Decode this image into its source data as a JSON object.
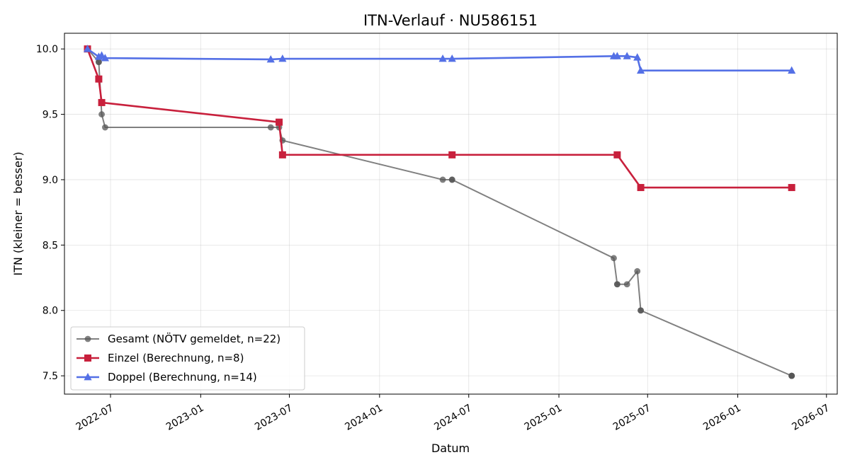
{
  "chart_data": {
    "type": "line",
    "title": "ITN-Verlauf · NU586151",
    "xlabel": "Datum",
    "ylabel": "ITN  (kleiner = besser)",
    "x_type": "date",
    "xlim": [
      "2022-03-29",
      "2026-07-23"
    ],
    "ylim": [
      7.36,
      10.12
    ],
    "x_ticks": [
      "2022-07-01",
      "2023-01-01",
      "2023-07-01",
      "2024-01-01",
      "2024-07-01",
      "2025-01-01",
      "2025-07-01",
      "2026-01-01",
      "2026-07-01"
    ],
    "x_tick_labels": [
      "2022-07",
      "2023-01",
      "2023-07",
      "2024-01",
      "2024-07",
      "2025-01",
      "2025-07",
      "2026-01",
      "2026-07"
    ],
    "y_ticks": [
      7.5,
      8.0,
      8.5,
      9.0,
      9.5,
      10.0
    ],
    "y_tick_labels": [
      "7.5",
      "8.0",
      "8.5",
      "9.0",
      "9.5",
      "10.0"
    ],
    "grid": true,
    "legend_position": "lower-left",
    "series": [
      {
        "name": "Gesamt (NÖTV gemeldet, n=22)",
        "color": "#555555",
        "marker": "circle",
        "points": [
          {
            "x": "2022-05-15",
            "y": 10.0
          },
          {
            "x": "2022-06-07",
            "y": 9.9
          },
          {
            "x": "2022-06-07",
            "y": 9.9
          },
          {
            "x": "2022-06-13",
            "y": 9.5
          },
          {
            "x": "2022-06-20",
            "y": 9.4
          },
          {
            "x": "2023-05-24",
            "y": 9.4
          },
          {
            "x": "2023-06-10",
            "y": 9.4
          },
          {
            "x": "2023-06-17",
            "y": 9.3
          },
          {
            "x": "2024-05-09",
            "y": 9.0
          },
          {
            "x": "2024-05-28",
            "y": 9.0
          },
          {
            "x": "2024-05-28",
            "y": 9.0
          },
          {
            "x": "2025-04-23",
            "y": 8.4
          },
          {
            "x": "2025-04-30",
            "y": 8.2
          },
          {
            "x": "2025-04-30",
            "y": 8.2
          },
          {
            "x": "2025-05-20",
            "y": 8.2
          },
          {
            "x": "2025-06-10",
            "y": 8.3
          },
          {
            "x": "2025-06-17",
            "y": 8.0
          },
          {
            "x": "2025-06-17",
            "y": 8.0
          },
          {
            "x": "2026-04-21",
            "y": 7.5
          },
          {
            "x": "2026-04-21",
            "y": 7.5
          },
          {
            "x": "2026-04-21",
            "y": 7.5
          },
          {
            "x": "2026-04-21",
            "y": 7.5
          }
        ]
      },
      {
        "name": "Einzel (Berechnung, n=8)",
        "color": "#c8203c",
        "marker": "square",
        "points": [
          {
            "x": "2022-05-15",
            "y": 10.0
          },
          {
            "x": "2022-06-07",
            "y": 9.77
          },
          {
            "x": "2022-06-13",
            "y": 9.59
          },
          {
            "x": "2023-06-10",
            "y": 9.44
          },
          {
            "x": "2023-06-17",
            "y": 9.19
          },
          {
            "x": "2024-05-28",
            "y": 9.19
          },
          {
            "x": "2025-04-30",
            "y": 9.19
          },
          {
            "x": "2025-06-17",
            "y": 8.94
          },
          {
            "x": "2026-04-21",
            "y": 8.94
          }
        ]
      },
      {
        "name": "Doppel (Berechnung, n=14)",
        "color": "#5470e6",
        "marker": "triangle",
        "points": [
          {
            "x": "2022-05-15",
            "y": 10.0
          },
          {
            "x": "2022-06-07",
            "y": 9.94
          },
          {
            "x": "2022-06-13",
            "y": 9.95
          },
          {
            "x": "2022-06-20",
            "y": 9.93
          },
          {
            "x": "2023-05-24",
            "y": 9.92
          },
          {
            "x": "2023-06-17",
            "y": 9.925
          },
          {
            "x": "2024-05-09",
            "y": 9.925
          },
          {
            "x": "2024-05-28",
            "y": 9.925
          },
          {
            "x": "2025-04-23",
            "y": 9.945
          },
          {
            "x": "2025-04-30",
            "y": 9.945
          },
          {
            "x": "2025-05-20",
            "y": 9.945
          },
          {
            "x": "2025-06-10",
            "y": 9.935
          },
          {
            "x": "2025-06-17",
            "y": 9.835
          },
          {
            "x": "2026-04-21",
            "y": 9.835
          }
        ]
      }
    ]
  }
}
